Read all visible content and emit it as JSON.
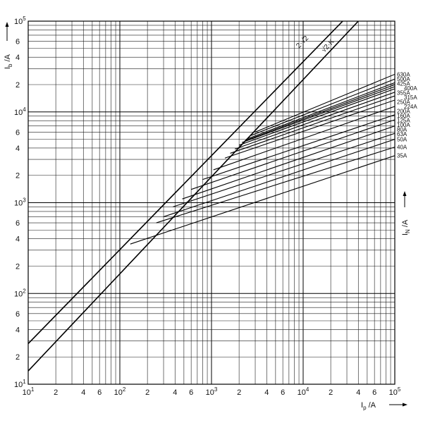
{
  "chart_data": {
    "type": "line",
    "x_scale": "log",
    "y_scale": "log",
    "xlim": [
      10,
      100000
    ],
    "ylim": [
      10,
      100000
    ],
    "grid": true,
    "xlabel": {
      "main": "I",
      "sub": "p",
      "unit": " /A"
    },
    "ylabel": {
      "main": "I",
      "sub": "b",
      "unit": " /A"
    },
    "side_label": {
      "main": "I",
      "sub": "N",
      "unit": " /A"
    },
    "x_ticks": [
      {
        "value": 10,
        "mant": "10",
        "exp": "1"
      },
      {
        "value": 20,
        "mant": "2"
      },
      {
        "value": 40,
        "mant": "4"
      },
      {
        "value": 60,
        "mant": "6"
      },
      {
        "value": 100,
        "mant": "10",
        "exp": "2"
      },
      {
        "value": 200,
        "mant": "2"
      },
      {
        "value": 400,
        "mant": "4"
      },
      {
        "value": 600,
        "mant": "6"
      },
      {
        "value": 1000,
        "mant": "10",
        "exp": "3"
      },
      {
        "value": 2000,
        "mant": "2"
      },
      {
        "value": 4000,
        "mant": "4"
      },
      {
        "value": 6000,
        "mant": "6"
      },
      {
        "value": 10000,
        "mant": "10",
        "exp": "4"
      },
      {
        "value": 20000,
        "mant": "2"
      },
      {
        "value": 40000,
        "mant": "4"
      },
      {
        "value": 60000,
        "mant": "6"
      },
      {
        "value": 100000,
        "mant": "10",
        "exp": "5"
      }
    ],
    "y_ticks": [
      {
        "value": 10,
        "mant": "10",
        "exp": "1"
      },
      {
        "value": 20,
        "mant": "2"
      },
      {
        "value": 40,
        "mant": "4"
      },
      {
        "value": 60,
        "mant": "6"
      },
      {
        "value": 100,
        "mant": "10",
        "exp": "2"
      },
      {
        "value": 200,
        "mant": "2"
      },
      {
        "value": 400,
        "mant": "4"
      },
      {
        "value": 600,
        "mant": "6"
      },
      {
        "value": 1000,
        "mant": "10",
        "exp": "3"
      },
      {
        "value": 2000,
        "mant": "2"
      },
      {
        "value": 4000,
        "mant": "4"
      },
      {
        "value": 6000,
        "mant": "6"
      },
      {
        "value": 10000,
        "mant": "10",
        "exp": "4"
      },
      {
        "value": 20000,
        "mant": "2"
      },
      {
        "value": 40000,
        "mant": "4"
      },
      {
        "value": 60000,
        "mant": "6"
      },
      {
        "value": 100000,
        "mant": "10",
        "exp": "5"
      }
    ],
    "reference_lines": [
      {
        "label": "2·√2",
        "x": [
          10,
          27000
        ],
        "y": [
          28,
          100000
        ]
      },
      {
        "label": "√2·K",
        "x": [
          10,
          40000
        ],
        "y": [
          14,
          100000
        ]
      }
    ],
    "series": [
      {
        "name": "630A",
        "x": [
          3000,
          100000
        ],
        "y": [
          6000,
          26000
        ]
      },
      {
        "name": "500A",
        "x": [
          2700,
          100000
        ],
        "y": [
          5500,
          23000
        ]
      },
      {
        "name": "425A",
        "x": [
          2400,
          100000
        ],
        "y": [
          5000,
          21000
        ]
      },
      {
        "name": "400A",
        "x": [
          2300,
          100000
        ],
        "y": [
          4800,
          20000
        ]
      },
      {
        "name": "355A",
        "x": [
          2150,
          100000
        ],
        "y": [
          4600,
          19000
        ]
      },
      {
        "name": "315A",
        "x": [
          2000,
          100000
        ],
        "y": [
          4300,
          18000
        ]
      },
      {
        "name": "250A",
        "x": [
          1800,
          100000
        ],
        "y": [
          3900,
          16500
        ]
      },
      {
        "name": "224A",
        "x": [
          1600,
          100000
        ],
        "y": [
          3500,
          15000
        ]
      },
      {
        "name": "200A",
        "x": [
          1400,
          100000
        ],
        "y": [
          3100,
          13500
        ]
      },
      {
        "name": "160A",
        "x": [
          1050,
          100000
        ],
        "y": [
          2300,
          11500
        ]
      },
      {
        "name": "125A",
        "x": [
          800,
          100000
        ],
        "y": [
          1800,
          9300
        ]
      },
      {
        "name": "100A",
        "x": [
          600,
          100000
        ],
        "y": [
          1400,
          8200
        ]
      },
      {
        "name": "80A",
        "x": [
          480,
          100000
        ],
        "y": [
          1100,
          7000
        ]
      },
      {
        "name": "63A",
        "x": [
          380,
          100000
        ],
        "y": [
          900,
          5800
        ]
      },
      {
        "name": "50A",
        "x": [
          300,
          100000
        ],
        "y": [
          700,
          5000
        ]
      },
      {
        "name": "40A",
        "x": [
          250,
          100000
        ],
        "y": [
          600,
          4100
        ]
      },
      {
        "name": "35A",
        "x": [
          130,
          100000
        ],
        "y": [
          350,
          3300
        ]
      }
    ]
  }
}
